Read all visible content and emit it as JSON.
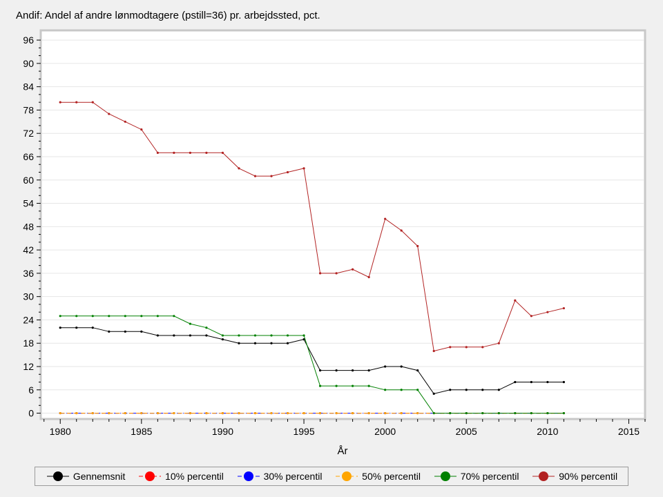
{
  "title": "Andif: Andel af andre lønmodtagere (pstill=36) pr. arbejdssted, pct.",
  "chart_data": {
    "type": "line",
    "title": "Andif: Andel af andre lønmodtagere (pstill=36) pr. arbejdssted, pct.",
    "xlabel": "År",
    "ylabel": "",
    "xlim": [
      1978.8,
      2016
    ],
    "ylim": [
      -1.5,
      98.5
    ],
    "xticks": [
      1980,
      1985,
      1990,
      1995,
      2000,
      2005,
      2010,
      2015
    ],
    "yticks": [
      0,
      6,
      12,
      18,
      24,
      30,
      36,
      42,
      48,
      54,
      60,
      66,
      72,
      78,
      84,
      90,
      96
    ],
    "grid": true,
    "legend_position": "bottom",
    "x": [
      1980,
      1981,
      1982,
      1983,
      1984,
      1985,
      1986,
      1987,
      1988,
      1989,
      1990,
      1991,
      1992,
      1993,
      1994,
      1995,
      1996,
      1997,
      1998,
      1999,
      2000,
      2001,
      2002,
      2003,
      2004,
      2005,
      2006,
      2007,
      2008,
      2009,
      2010,
      2011
    ],
    "series": [
      {
        "name": "Gennemsnit",
        "color": "#000000",
        "dash": "solid",
        "values": [
          22,
          22,
          22,
          21,
          21,
          21,
          20,
          20,
          20,
          20,
          19,
          18,
          18,
          18,
          18,
          19,
          11,
          11,
          11,
          11,
          12,
          12,
          11,
          5,
          6,
          6,
          6,
          6,
          8,
          8,
          8,
          8
        ]
      },
      {
        "name": "10% percentil",
        "color": "#ff0000",
        "dash": "dashed",
        "values": [
          0,
          0,
          0,
          0,
          0,
          0,
          0,
          0,
          0,
          0,
          0,
          0,
          0,
          0,
          0,
          0,
          0,
          0,
          0,
          0,
          0,
          0,
          0,
          0,
          0,
          0,
          0,
          0,
          0,
          0,
          0,
          0
        ]
      },
      {
        "name": "30% percentil",
        "color": "#0000ff",
        "dash": "dashdot",
        "values": [
          0,
          0,
          0,
          0,
          0,
          0,
          0,
          0,
          0,
          0,
          0,
          0,
          0,
          0,
          0,
          0,
          0,
          0,
          0,
          0,
          0,
          0,
          0,
          0,
          0,
          0,
          0,
          0,
          0,
          0,
          0,
          0
        ]
      },
      {
        "name": "50% percentil",
        "color": "#ffa500",
        "dash": "dashed",
        "values": [
          0,
          0,
          0,
          0,
          0,
          0,
          0,
          0,
          0,
          0,
          0,
          0,
          0,
          0,
          0,
          0,
          0,
          0,
          0,
          0,
          0,
          0,
          0,
          0,
          0,
          0,
          0,
          0,
          0,
          0,
          0,
          0
        ]
      },
      {
        "name": "70% percentil",
        "color": "#008000",
        "dash": "solid",
        "values": [
          25,
          25,
          25,
          25,
          25,
          25,
          25,
          25,
          23,
          22,
          20,
          20,
          20,
          20,
          20,
          20,
          7,
          7,
          7,
          7,
          6,
          6,
          6,
          0,
          0,
          0,
          0,
          0,
          0,
          0,
          0,
          0
        ]
      },
      {
        "name": "90% percentil",
        "color": "#b22222",
        "dash": "solid",
        "values": [
          80,
          80,
          80,
          77,
          75,
          73,
          67,
          67,
          67,
          67,
          67,
          63,
          61,
          61,
          62,
          63,
          36,
          36,
          37,
          35,
          50,
          47,
          43,
          16,
          17,
          17,
          17,
          18,
          29,
          25,
          26,
          27
        ]
      }
    ]
  },
  "legend": {
    "items": [
      {
        "label": "Gennemsnit",
        "color": "#000000",
        "dash": "solid"
      },
      {
        "label": "10% percentil",
        "color": "#ff0000",
        "dash": "dashed"
      },
      {
        "label": "30% percentil",
        "color": "#0000ff",
        "dash": "dashdot"
      },
      {
        "label": "50% percentil",
        "color": "#ffa500",
        "dash": "dashed"
      },
      {
        "label": "70% percentil",
        "color": "#008000",
        "dash": "solid"
      },
      {
        "label": "90% percentil",
        "color": "#b22222",
        "dash": "solid"
      }
    ]
  }
}
